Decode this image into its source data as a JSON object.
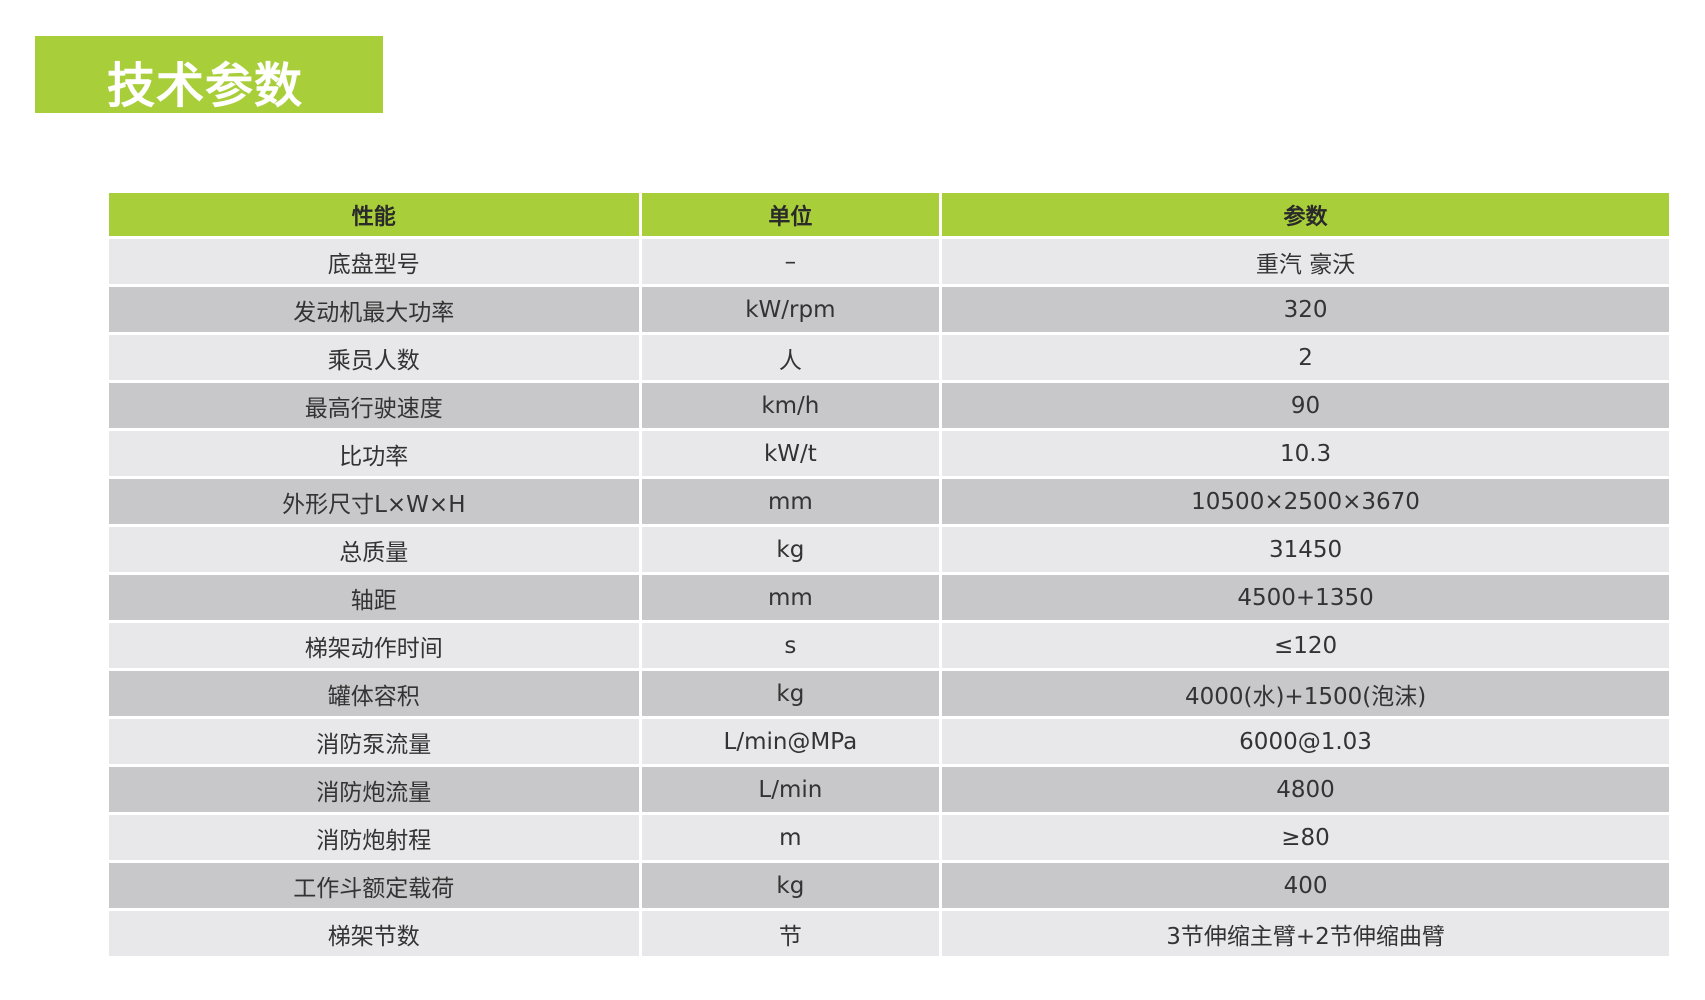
{
  "title": "技术参数",
  "colors": {
    "accent": "#a8cf3a",
    "row_light": "#e8e8ea",
    "row_dark": "#c8c8ca"
  },
  "table": {
    "headers": [
      "性能",
      "单位",
      "参数"
    ],
    "rows": [
      [
        "底盘型号",
        "–",
        "重汽 豪沃"
      ],
      [
        "发动机最大功率",
        "kW/rpm",
        "320"
      ],
      [
        "乘员人数",
        "人",
        "2"
      ],
      [
        "最高行驶速度",
        "km/h",
        "90"
      ],
      [
        "比功率",
        "kW/t",
        "10.3"
      ],
      [
        "外形尺寸L×W×H",
        "mm",
        "10500×2500×3670"
      ],
      [
        "总质量",
        "kg",
        "31450"
      ],
      [
        "轴距",
        "mm",
        "4500+1350"
      ],
      [
        "梯架动作时间",
        "s",
        "≤120"
      ],
      [
        "罐体容积",
        "kg",
        "4000(水)+1500(泡沫)"
      ],
      [
        "消防泵流量",
        "L/min@MPa",
        "6000@1.03"
      ],
      [
        "消防炮流量",
        "L/min",
        "4800"
      ],
      [
        "消防炮射程",
        "m",
        "≥80"
      ],
      [
        "工作斗额定载荷",
        "kg",
        "400"
      ],
      [
        "梯架节数",
        "节",
        "3节伸缩主臂+2节伸缩曲臂"
      ]
    ]
  }
}
